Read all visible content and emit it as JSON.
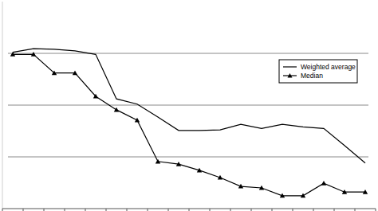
{
  "chart_data": {
    "type": "line",
    "categories": [
      null,
      null,
      null,
      null,
      null,
      null,
      null,
      null,
      null,
      null,
      null,
      null,
      null,
      null,
      null,
      null,
      null,
      null
    ],
    "series": [
      {
        "name": "Weighted average",
        "color": "#000000",
        "marker": "none",
        "line_style": "solid",
        "values": [
          3.02,
          3.09,
          3.08,
          3.05,
          2.98,
          2.12,
          2.02,
          1.77,
          1.51,
          1.51,
          1.52,
          1.63,
          1.55,
          1.63,
          1.58,
          1.55,
          1.22,
          0.88
        ]
      },
      {
        "name": "Median",
        "color": "#000000",
        "marker": "triangle",
        "line_style": "solid",
        "values": [
          2.98,
          2.98,
          2.62,
          2.62,
          2.17,
          1.91,
          1.71,
          0.91,
          0.86,
          0.74,
          0.6,
          0.43,
          0.4,
          0.25,
          0.25,
          0.49,
          0.32,
          0.32
        ]
      }
    ],
    "ylim": [
      0,
      4
    ],
    "yticks": [
      1,
      2,
      3
    ],
    "grid": true,
    "legend": "upper right",
    "tick_labels": false
  }
}
